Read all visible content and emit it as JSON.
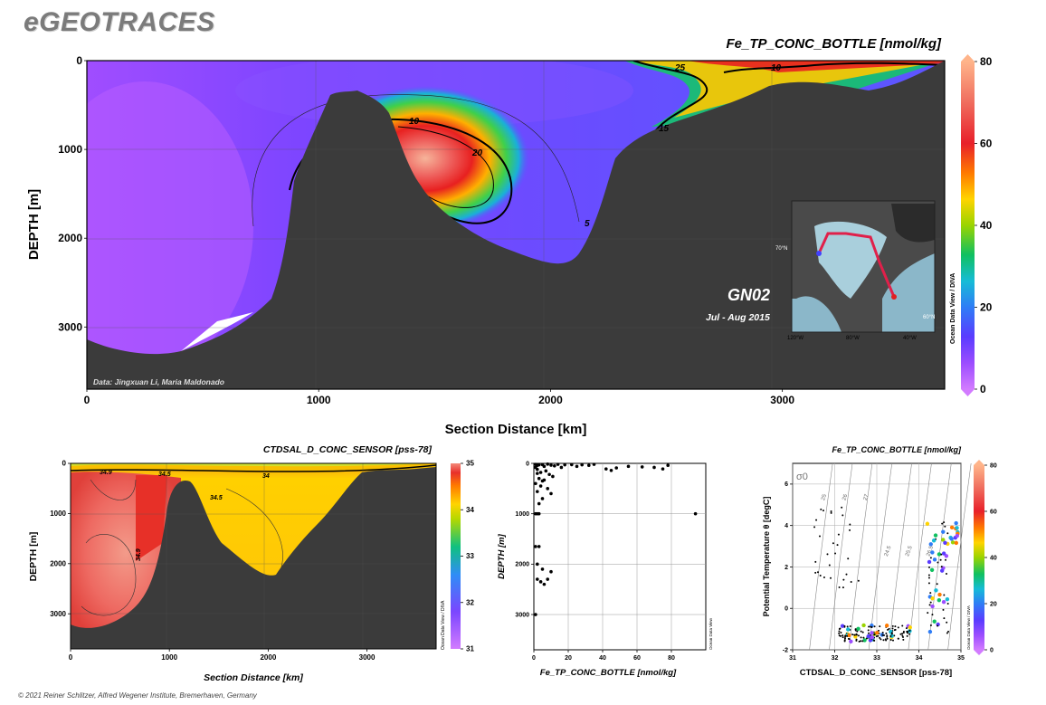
{
  "brand": "eGEOTRACES",
  "footer": "© 2021 Reiner Schlitzer, Alfred Wegener Institute, Bremerhaven, Germany",
  "chart_data": [
    {
      "id": "main_section",
      "type": "heatmap",
      "title": "Fe_TP_CONC_BOTTLE [nmol/kg]",
      "xlabel": "Section Distance [km]",
      "ylabel": "DEPTH [m]",
      "xlim": [
        0,
        3700
      ],
      "ylim": [
        3700,
        0
      ],
      "xticks": [
        0,
        1000,
        2000,
        3000
      ],
      "yticks": [
        0,
        1000,
        2000,
        3000
      ],
      "colorbar": {
        "min": 0,
        "max": 80,
        "ticks": [
          0,
          20,
          40,
          60,
          80
        ],
        "label": "Ocean Data View / DIVA"
      },
      "contour_labels": [
        "10",
        "20",
        "5",
        "15",
        "25",
        "10"
      ],
      "credit": "Data: Jingxuan Li, Maria Maldonado",
      "inset": {
        "cruise": "GN02",
        "dates": "Jul - Aug 2015",
        "lat_label": "70°N",
        "lat_label2": "60°N",
        "lon_labels": [
          "120°W",
          "80°W",
          "40°W"
        ]
      }
    },
    {
      "id": "salinity_section",
      "type": "heatmap",
      "title": "CTDSAL_D_CONC_SENSOR [pss-78]",
      "xlabel": "Section Distance [km]",
      "ylabel": "DEPTH [m]",
      "xlim": [
        0,
        3700
      ],
      "ylim": [
        3700,
        0
      ],
      "xticks": [
        0,
        1000,
        2000,
        3000
      ],
      "yticks": [
        0,
        1000,
        2000,
        3000
      ],
      "colorbar": {
        "min": 31,
        "max": 35,
        "ticks": [
          31,
          32,
          33,
          34,
          35
        ],
        "label": "Ocean Data View / DIVA"
      },
      "contour_labels": [
        "34.9",
        "34.5",
        "34",
        "34.5",
        "34.9"
      ]
    },
    {
      "id": "profile",
      "type": "scatter",
      "xlabel": "Fe_TP_CONC_BOTTLE [nmol/kg]",
      "ylabel": "DEPTH [m]",
      "xlim": [
        0,
        100
      ],
      "ylim": [
        3700,
        0
      ],
      "xticks": [
        0,
        20,
        40,
        60,
        80
      ],
      "yticks": [
        0,
        1000,
        2000,
        3000
      ],
      "side_label": "Ocean Data View",
      "points": [
        [
          1,
          20
        ],
        [
          2,
          40
        ],
        [
          3,
          30
        ],
        [
          5,
          25
        ],
        [
          6,
          60
        ],
        [
          8,
          15
        ],
        [
          10,
          35
        ],
        [
          12,
          50
        ],
        [
          14,
          20
        ],
        [
          16,
          80
        ],
        [
          18,
          30
        ],
        [
          22,
          25
        ],
        [
          25,
          60
        ],
        [
          28,
          30
        ],
        [
          32,
          40
        ],
        [
          35,
          20
        ],
        [
          42,
          110
        ],
        [
          45,
          140
        ],
        [
          48,
          90
        ],
        [
          55,
          60
        ],
        [
          63,
          70
        ],
        [
          70,
          80
        ],
        [
          75,
          110
        ],
        [
          78,
          40
        ],
        [
          2,
          120
        ],
        [
          4,
          180
        ],
        [
          7,
          150
        ],
        [
          9,
          220
        ],
        [
          11,
          260
        ],
        [
          3,
          300
        ],
        [
          6,
          330
        ],
        [
          1,
          400
        ],
        [
          4,
          450
        ],
        [
          8,
          500
        ],
        [
          2,
          560
        ],
        [
          10,
          600
        ],
        [
          5,
          700
        ],
        [
          3,
          800
        ],
        [
          1,
          1000
        ],
        [
          2,
          1000
        ],
        [
          3,
          1000
        ],
        [
          1,
          1650
        ],
        [
          3,
          1650
        ],
        [
          2,
          2000
        ],
        [
          5,
          2100
        ],
        [
          10,
          2150
        ],
        [
          2,
          2300
        ],
        [
          4,
          2350
        ],
        [
          6,
          2400
        ],
        [
          8,
          2300
        ],
        [
          1,
          3000
        ],
        [
          94,
          1000
        ],
        [
          1,
          80
        ],
        [
          2,
          200
        ],
        [
          5,
          350
        ]
      ]
    },
    {
      "id": "ts_diagram",
      "type": "scatter",
      "title": "Fe_TP_CONC_BOTTLE [nmol/kg]",
      "xlabel": "CTDSAL_D_CONC_SENSOR [pss-78]",
      "ylabel": "Potential Temperature θ [degC]",
      "xlim": [
        31,
        35
      ],
      "ylim": [
        -2,
        7
      ],
      "xticks": [
        31,
        32,
        33,
        34,
        35
      ],
      "yticks": [
        -2,
        0,
        2,
        4,
        6
      ],
      "sigma_label": "σ0",
      "isopycnal_labels": [
        "25",
        "26",
        "27",
        "24.5",
        "25.5",
        "26.5"
      ],
      "colorbar": {
        "min": 0,
        "max": 80,
        "ticks": [
          0,
          20,
          40,
          60,
          80
        ],
        "label": "Ocean Data View / DIVA"
      }
    }
  ]
}
